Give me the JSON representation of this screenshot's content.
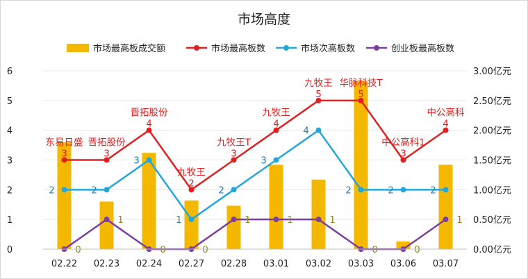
{
  "chart_data": {
    "type": "bar",
    "title": "市场高度",
    "categories": [
      "02.22",
      "02.23",
      "02.24",
      "02.27",
      "02.28",
      "03.01",
      "03.02",
      "03.03",
      "03.06",
      "03.07"
    ],
    "left_axis": {
      "min": 0,
      "max": 6,
      "ticks": [
        "0",
        "1",
        "2",
        "3",
        "4",
        "5",
        "6"
      ]
    },
    "right_axis": {
      "min": 0,
      "max": 3,
      "ticks": [
        "0.00亿元",
        "0.50亿元",
        "1.00亿元",
        "1.50亿元",
        "2.00亿元",
        "2.50亿元",
        "3.00亿元"
      ]
    },
    "legend_position": "top",
    "grid": true,
    "colors": {
      "bar": "#f5b800",
      "max_line": "#e02020",
      "second_line": "#22a7dd",
      "cyb_line": "#7a3fa0"
    },
    "series": [
      {
        "name": "市场最高板成交额",
        "type": "bar",
        "axis": "right",
        "values": [
          1.8,
          0.8,
          1.62,
          0.82,
          0.73,
          1.42,
          1.17,
          2.83,
          0.13,
          1.42
        ]
      },
      {
        "name": "市场最高板数",
        "type": "line",
        "axis": "left",
        "values": [
          3,
          3,
          4,
          2,
          3,
          4,
          5,
          5,
          3,
          4
        ],
        "labels": [
          "东易日盛",
          "晋拓股份",
          "晋拓股份",
          "九牧王",
          "九牧王T",
          "九牧王",
          "九牧王",
          "华脉科技T",
          "中公高科1",
          "中公高科"
        ]
      },
      {
        "name": "市场次高板数",
        "type": "line",
        "axis": "left",
        "values": [
          2,
          2,
          3,
          1,
          2,
          3,
          4,
          2,
          2,
          2
        ]
      },
      {
        "name": "创业板最高板数",
        "type": "line",
        "axis": "left",
        "values": [
          0,
          1,
          0,
          0,
          1,
          1,
          1,
          0,
          0,
          1
        ]
      }
    ]
  }
}
